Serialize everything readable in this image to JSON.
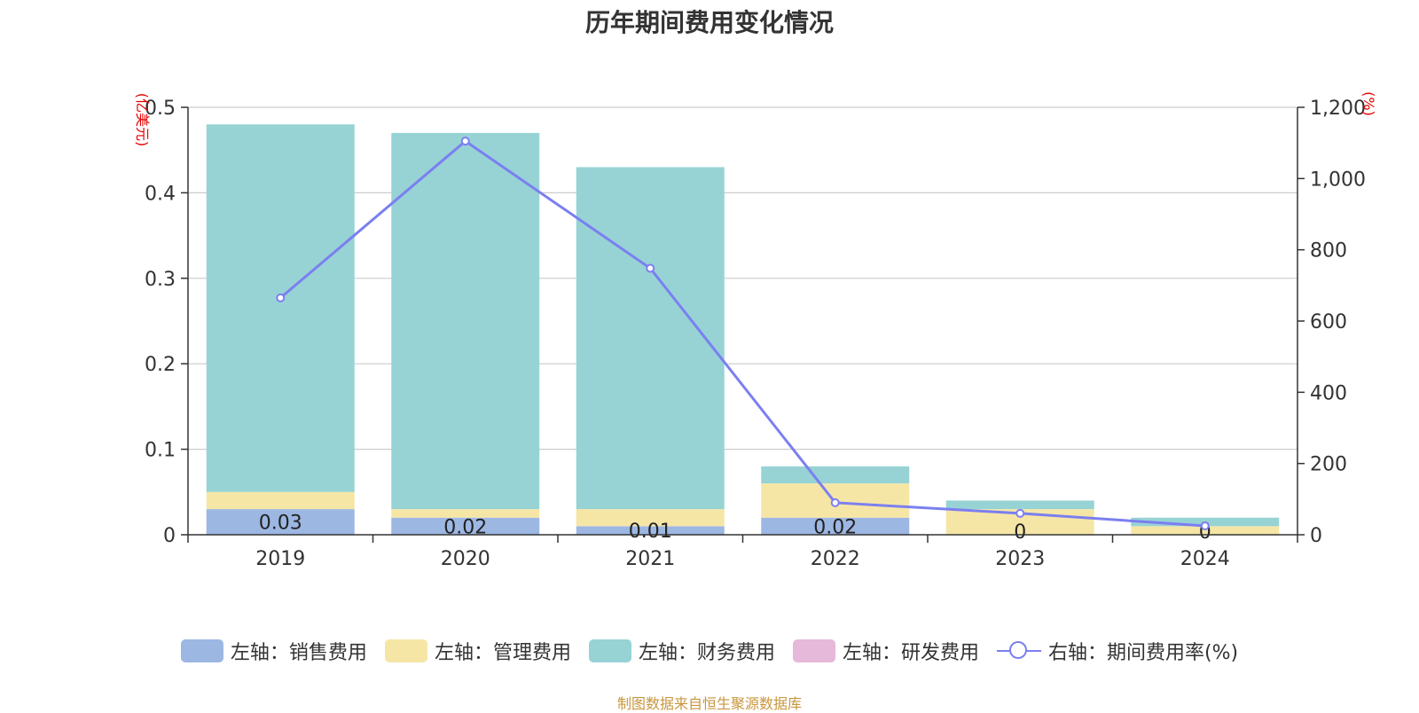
{
  "chart_data": {
    "type": "bar",
    "title": "历年期间费用变化情况",
    "categories": [
      "2019",
      "2020",
      "2021",
      "2022",
      "2023",
      "2024"
    ],
    "left_axis": {
      "unit": "(亿美元)",
      "ylim": [
        0,
        0.5
      ],
      "ticks": [
        "0",
        "0.1",
        "0.2",
        "0.3",
        "0.4",
        "0.5"
      ]
    },
    "right_axis": {
      "unit": "(%)",
      "ylim": [
        0,
        1200
      ],
      "ticks": [
        "0",
        "200",
        "400",
        "600",
        "800",
        "1,000",
        "1,200"
      ]
    },
    "stacked": true,
    "series": [
      {
        "name": "左轴：销售费用",
        "type": "bar",
        "color": "#9db7e3",
        "values": [
          0.03,
          0.02,
          0.01,
          0.02,
          0,
          0
        ],
        "labels": [
          "0.03",
          "0.02",
          "0.01",
          "0.02",
          "0",
          "0"
        ]
      },
      {
        "name": "左轴：管理费用",
        "type": "bar",
        "color": "#f6e6a6",
        "values": [
          0.02,
          0.01,
          0.02,
          0.04,
          0.03,
          0.01
        ]
      },
      {
        "name": "左轴：财务费用",
        "type": "bar",
        "color": "#97d3d5",
        "values": [
          0.43,
          0.44,
          0.4,
          0.02,
          0.01,
          0.01
        ]
      },
      {
        "name": "左轴：研发费用",
        "type": "bar",
        "color": "#e6b8d9",
        "values": [
          0,
          0,
          0,
          0,
          0,
          0
        ]
      },
      {
        "name": "右轴：期间费用率(%)",
        "type": "line",
        "color": "#7b7ff0",
        "values": [
          665,
          1105,
          748,
          90,
          60,
          25
        ]
      }
    ],
    "grid": true,
    "legend_position": "bottom"
  },
  "source": "制图数据来自恒生聚源数据库"
}
